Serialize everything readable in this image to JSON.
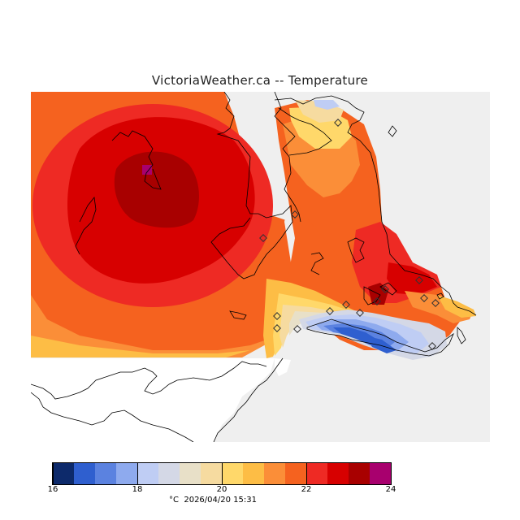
{
  "title": "VictoriaWeather.ca -- Temperature",
  "legend": {
    "colors": [
      "#0d2a6b",
      "#2f5fcf",
      "#5b82e0",
      "#8eaaee",
      "#bfcdf4",
      "#d4d8e6",
      "#e8e0c8",
      "#f6dba0",
      "#ffd86a",
      "#fdbd45",
      "#fb8e38",
      "#f5621f",
      "#ee2a24",
      "#d70000",
      "#a80000",
      "#a8006e"
    ],
    "range": [
      16,
      24
    ],
    "tick_values": [
      16,
      18,
      20,
      22,
      24
    ],
    "tick_labels": [
      "16",
      "18",
      "20",
      "22",
      "24"
    ]
  },
  "footer": {
    "unit": "°C",
    "timestamp": "2026/04/20 15:31"
  },
  "map": {
    "field_description_colors": {
      "land_gray": "#f0f0f0",
      "hot_core": "#b00000"
    }
  }
}
